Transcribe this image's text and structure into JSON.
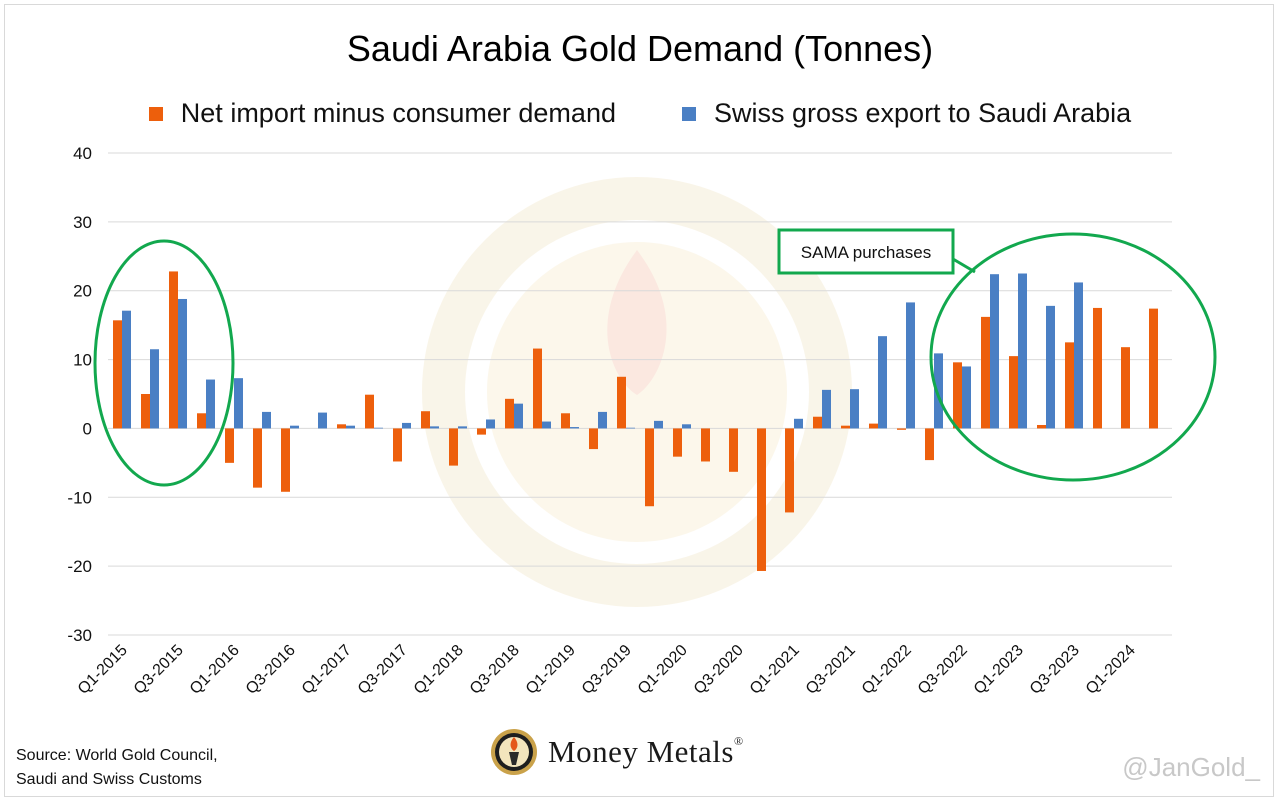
{
  "chart_data": {
    "type": "bar",
    "title": "Saudi Arabia Gold Demand (Tonnes)",
    "xlabel": "",
    "ylabel": "",
    "ylim": [
      -30,
      40
    ],
    "yticks": [
      40,
      30,
      20,
      10,
      0,
      -10,
      -20,
      -30
    ],
    "grid": true,
    "legend_position": "top",
    "categories": [
      "Q1-2015",
      "Q2-2015",
      "Q3-2015",
      "Q4-2015",
      "Q1-2016",
      "Q2-2016",
      "Q3-2016",
      "Q4-2016",
      "Q1-2017",
      "Q2-2017",
      "Q3-2017",
      "Q4-2017",
      "Q1-2018",
      "Q2-2018",
      "Q3-2018",
      "Q4-2018",
      "Q1-2019",
      "Q2-2019",
      "Q3-2019",
      "Q4-2019",
      "Q1-2020",
      "Q2-2020",
      "Q3-2020",
      "Q4-2020",
      "Q1-2021",
      "Q2-2021",
      "Q3-2021",
      "Q4-2021",
      "Q1-2022",
      "Q2-2022",
      "Q3-2022",
      "Q4-2022",
      "Q1-2023",
      "Q2-2023",
      "Q3-2023",
      "Q4-2023",
      "Q1-2024",
      "Q2-2024"
    ],
    "tick_labels": [
      "Q1-2015",
      "Q3-2015",
      "Q1-2016",
      "Q3-2016",
      "Q1-2017",
      "Q3-2017",
      "Q1-2018",
      "Q3-2018",
      "Q1-2019",
      "Q3-2019",
      "Q1-2020",
      "Q3-2020",
      "Q1-2021",
      "Q3-2021",
      "Q1-2022",
      "Q3-2022",
      "Q1-2023",
      "Q3-2023",
      "Q1-2024"
    ],
    "series": [
      {
        "name": "Net import minus consumer demand",
        "color": "#ED5F0C",
        "values": [
          15.7,
          5.0,
          22.8,
          2.2,
          -5.0,
          -8.6,
          -9.2,
          0,
          0.6,
          4.9,
          -4.8,
          2.5,
          -5.4,
          -0.9,
          4.3,
          11.6,
          2.2,
          -3.0,
          7.5,
          -11.3,
          -4.1,
          -4.8,
          -6.3,
          -20.7,
          -12.2,
          1.7,
          0.4,
          0.7,
          -0.2,
          -4.6,
          9.6,
          16.2,
          10.5,
          0.5,
          12.5,
          17.5,
          11.8,
          17.4
        ]
      },
      {
        "name": "Swiss gross export to Saudi Arabia",
        "color": "#4A7FC4",
        "values": [
          17.1,
          11.5,
          18.8,
          7.1,
          7.3,
          2.4,
          0.4,
          2.3,
          0.4,
          0.1,
          0.8,
          0.3,
          0.3,
          1.3,
          3.6,
          1.0,
          0.2,
          2.4,
          0.1,
          1.1,
          0.6,
          0,
          0,
          0,
          1.4,
          5.6,
          5.7,
          13.4,
          18.3,
          10.9,
          9.0,
          22.4,
          22.5,
          17.8,
          21.2,
          0,
          0,
          0
        ]
      }
    ],
    "annotations": [
      {
        "text": "SAMA purchases",
        "color": "#12A84E"
      }
    ]
  },
  "footer": {
    "source_line1": "Source: World Gold Council,",
    "source_line2": "Saudi and Swiss Customs",
    "brand": "Money Metals",
    "brand_reg": "®",
    "handle": "@JanGold_"
  }
}
